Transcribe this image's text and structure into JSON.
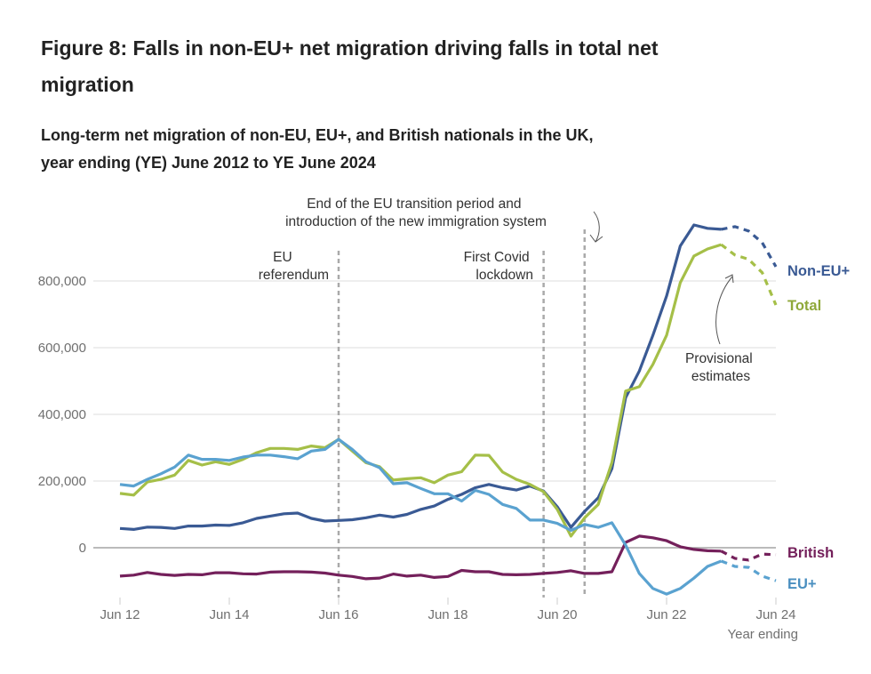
{
  "title": "Figure 8: Falls in non-EU+ net migration driving falls in total net migration",
  "subtitle_line1": "Long-term net migration of non-EU, EU+, and British nationals in the UK,",
  "subtitle_line2": "year ending (YE) June 2012 to YE June 2024",
  "chart_data": {
    "type": "line",
    "xlabel": "Year ending",
    "ylabel": "",
    "ylim": [
      -150000,
      1000000
    ],
    "y_ticks": [
      0,
      200000,
      400000,
      600000,
      800000
    ],
    "y_tick_labels": [
      "0",
      "200,000",
      "400,000",
      "600,000",
      "800,000"
    ],
    "x_tick_labels": [
      "Jun 12",
      "Jun 14",
      "Jun 16",
      "Jun 18",
      "Jun 20",
      "Jun 22",
      "Jun 24"
    ],
    "grid": "horizontal",
    "x": [
      "Jun 12",
      "Sep 12",
      "Dec 12",
      "Mar 13",
      "Jun 13",
      "Sep 13",
      "Dec 13",
      "Mar 14",
      "Jun 14",
      "Sep 14",
      "Dec 14",
      "Mar 15",
      "Jun 15",
      "Sep 15",
      "Dec 15",
      "Mar 16",
      "Jun 16",
      "Sep 16",
      "Dec 16",
      "Mar 17",
      "Jun 17",
      "Sep 17",
      "Dec 17",
      "Mar 18",
      "Jun 18",
      "Sep 18",
      "Dec 18",
      "Mar 19",
      "Jun 19",
      "Sep 19",
      "Dec 19",
      "Mar 20",
      "Jun 20",
      "Sep 20",
      "Dec 20",
      "Mar 21",
      "Jun 21",
      "Sep 21",
      "Dec 21",
      "Mar 22",
      "Jun 22",
      "Sep 22",
      "Dec 22",
      "Mar 23",
      "Jun 23",
      "Sep 23",
      "Dec 23",
      "Mar 24",
      "Jun 24"
    ],
    "provisional_from": "Jun 23",
    "series": [
      {
        "name": "Non-EU+",
        "color": "#3a5a94",
        "values": [
          58000,
          55000,
          62000,
          61000,
          58000,
          65000,
          65000,
          68000,
          67000,
          75000,
          88000,
          95000,
          102000,
          104000,
          88000,
          80000,
          82000,
          84000,
          90000,
          98000,
          92000,
          100000,
          115000,
          125000,
          145000,
          160000,
          180000,
          190000,
          180000,
          173000,
          185000,
          170000,
          123000,
          61000,
          109000,
          150000,
          237000,
          450000,
          530000,
          637000,
          755000,
          905000,
          968000,
          958000,
          955000,
          963000,
          950000,
          915000,
          843000
        ]
      },
      {
        "name": "Total",
        "color": "#a5bf48",
        "values": [
          163000,
          158000,
          197000,
          205000,
          218000,
          262000,
          248000,
          258000,
          250000,
          265000,
          285000,
          298000,
          298000,
          295000,
          305000,
          300000,
          325000,
          290000,
          255000,
          243000,
          203000,
          207000,
          210000,
          195000,
          218000,
          228000,
          278000,
          277000,
          227000,
          205000,
          190000,
          168000,
          115000,
          35000,
          90000,
          130000,
          256000,
          470000,
          483000,
          550000,
          637000,
          795000,
          875000,
          896000,
          909000,
          878000,
          865000,
          825000,
          728000
        ]
      },
      {
        "name": "British",
        "color": "#74205b",
        "values": [
          -85000,
          -82000,
          -74000,
          -80000,
          -83000,
          -80000,
          -81000,
          -75000,
          -75000,
          -78000,
          -79000,
          -73000,
          -72000,
          -72000,
          -73000,
          -76000,
          -82000,
          -86000,
          -93000,
          -91000,
          -79000,
          -85000,
          -82000,
          -89000,
          -86000,
          -68000,
          -72000,
          -72000,
          -80000,
          -81000,
          -80000,
          -77000,
          -74000,
          -69000,
          -77000,
          -77000,
          -72000,
          16000,
          35000,
          30000,
          21000,
          3000,
          -5000,
          -9000,
          -10000,
          -32000,
          -37000,
          -19000,
          -21000
        ]
      },
      {
        "name": "EU+",
        "color": "#5aa2d0",
        "values": [
          190000,
          185000,
          205000,
          222000,
          242000,
          278000,
          265000,
          265000,
          262000,
          272000,
          278000,
          278000,
          273000,
          267000,
          290000,
          295000,
          325000,
          295000,
          258000,
          240000,
          192000,
          195000,
          178000,
          162000,
          162000,
          140000,
          172000,
          160000,
          130000,
          118000,
          83000,
          83000,
          73000,
          52000,
          70000,
          61000,
          75000,
          8000,
          -77000,
          -122000,
          -139000,
          -122000,
          -91000,
          -56000,
          -40000,
          -56000,
          -59000,
          -85000,
          -99000
        ]
      }
    ],
    "annotations": {
      "eu_referendum": {
        "x": "Jun 16",
        "lines": [
          "EU",
          "referendum"
        ]
      },
      "covid": {
        "x": "Mar 20",
        "lines": [
          "First Covid",
          "lockdown"
        ]
      },
      "transition": {
        "x": "Dec 20",
        "lines": [
          "End of the EU transition period and",
          "introduction of the new immigration system"
        ]
      },
      "provisional": {
        "lines": [
          "Provisional",
          "estimates"
        ]
      }
    }
  }
}
